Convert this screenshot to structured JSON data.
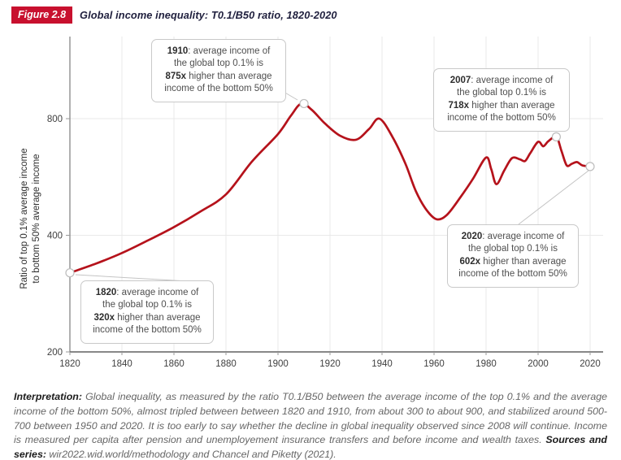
{
  "figure": {
    "badge": "Figure 2.8",
    "title": "Global income inequality: T0.1/B50 ratio, 1820-2020"
  },
  "chart_data": {
    "type": "line",
    "title": "Global income inequality: T0.1/B50 ratio, 1820-2020",
    "xlabel": "",
    "ylabel": "Ratio of top 0.1% average income to bottom 50% average income",
    "ylabel_line1": "Ratio of top 0.1% average income",
    "ylabel_line2": "to bottom 50% average income",
    "y_scale": "log",
    "xlim": [
      1820,
      2020
    ],
    "ylim": [
      200,
      1300
    ],
    "x_ticks": [
      1820,
      1840,
      1860,
      1880,
      1900,
      1920,
      1940,
      1960,
      1980,
      2000,
      2020
    ],
    "y_ticks": [
      200,
      400,
      800
    ],
    "grid": true,
    "legend": "none",
    "line_color": "#b5121b",
    "series": [
      {
        "name": "T0.1/B50 ratio",
        "color": "#b5121b",
        "points": [
          [
            1820,
            320
          ],
          [
            1830,
            338
          ],
          [
            1840,
            360
          ],
          [
            1850,
            388
          ],
          [
            1860,
            420
          ],
          [
            1870,
            460
          ],
          [
            1880,
            510
          ],
          [
            1890,
            620
          ],
          [
            1900,
            730
          ],
          [
            1905,
            815
          ],
          [
            1909,
            875
          ],
          [
            1913,
            843
          ],
          [
            1918,
            778
          ],
          [
            1924,
            722
          ],
          [
            1930,
            706
          ],
          [
            1935,
            752
          ],
          [
            1939,
            800
          ],
          [
            1944,
            718
          ],
          [
            1949,
            612
          ],
          [
            1953,
            520
          ],
          [
            1957,
            466
          ],
          [
            1961,
            440
          ],
          [
            1965,
            452
          ],
          [
            1970,
            500
          ],
          [
            1975,
            560
          ],
          [
            1980,
            635
          ],
          [
            1982,
            592
          ],
          [
            1984,
            542
          ],
          [
            1987,
            588
          ],
          [
            1990,
            633
          ],
          [
            1993,
            628
          ],
          [
            1995,
            622
          ],
          [
            1997,
            652
          ],
          [
            2000,
            697
          ],
          [
            2002,
            679
          ],
          [
            2004,
            700
          ],
          [
            2007,
            718
          ],
          [
            2009,
            660
          ],
          [
            2011,
            606
          ],
          [
            2013,
            612
          ],
          [
            2015,
            618
          ],
          [
            2017,
            606
          ],
          [
            2020,
            602
          ]
        ]
      }
    ],
    "key_points": [
      {
        "year": 1820,
        "value": 320
      },
      {
        "year": 1910,
        "value": 875
      },
      {
        "year": 2007,
        "value": 718
      },
      {
        "year": 2020,
        "value": 602
      }
    ]
  },
  "annotations": [
    {
      "id": "1910",
      "lines": [
        {
          "b": "1910",
          "t": ": average income of"
        },
        {
          "b": "",
          "t": "the global top 0.1% is"
        },
        {
          "b": "875x",
          "t": " higher than average"
        },
        {
          "b": "",
          "t": "income of the bottom 50%"
        }
      ]
    },
    {
      "id": "2007",
      "lines": [
        {
          "b": "2007",
          "t": ": average income of"
        },
        {
          "b": "",
          "t": "the global top 0.1% is"
        },
        {
          "b": "718x",
          "t": " higher than average"
        },
        {
          "b": "",
          "t": "income of the bottom 50%"
        }
      ]
    },
    {
      "id": "1820",
      "lines": [
        {
          "b": "1820",
          "t": ": average income of"
        },
        {
          "b": "",
          "t": "the global top 0.1% is"
        },
        {
          "b": "320x",
          "t": " higher than average"
        },
        {
          "b": "",
          "t": "income of the bottom 50%"
        }
      ]
    },
    {
      "id": "2020",
      "lines": [
        {
          "b": "2020",
          "t": ": average income of"
        },
        {
          "b": "",
          "t": "the global top 0.1% is"
        },
        {
          "b": "602x",
          "t": " higher than average"
        },
        {
          "b": "",
          "t": "income of the bottom 50%"
        }
      ]
    }
  ],
  "footer": {
    "interpretation_label": "Interpretation:",
    "interpretation_text": " Global inequality, as measured by the ratio T0.1/B50 between the average income of the top 0.1% and the average income of the bottom 50%, almost tripled between between 1820 and 1910, from about 300 to about 900, and stabilized around 500-700 between 1950 and 2020. It is too early to say whether the decline in global inequality observed since 2008 will continue. Income is measured per capita after pension and unemployement insurance transfers and before income and wealth taxes. ",
    "sources_label": "Sources and series:",
    "sources_text": " wir2022.wid.world/methodology and Chancel and Piketty (2021)."
  }
}
